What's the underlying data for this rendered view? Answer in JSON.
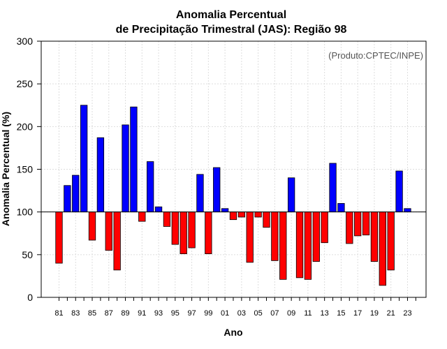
{
  "chart_data": {
    "type": "bar",
    "title": "Anomalia Percentual",
    "subtitle": "de Precipitação Trimestral (JAS): Região 98",
    "xlabel": "Ano",
    "ylabel": "Anomalia Percentual (%)",
    "credit": "(Produto:CPTEC/INPE)",
    "baseline": 100,
    "ylim": [
      0,
      300
    ],
    "yticks": [
      "0",
      "50",
      "100",
      "150",
      "200",
      "250",
      "300"
    ],
    "categories": [
      "81",
      "82",
      "83",
      "84",
      "85",
      "86",
      "87",
      "88",
      "89",
      "90",
      "91",
      "92",
      "93",
      "94",
      "95",
      "96",
      "97",
      "98",
      "99",
      "00",
      "01",
      "02",
      "03",
      "04",
      "05",
      "06",
      "07",
      "08",
      "09",
      "10",
      "11",
      "12",
      "13",
      "14",
      "15",
      "16",
      "17",
      "18",
      "19",
      "20",
      "21",
      "22",
      "23",
      "24"
    ],
    "tick_labels": [
      "81",
      "83",
      "85",
      "87",
      "89",
      "91",
      "93",
      "95",
      "97",
      "99",
      "01",
      "03",
      "05",
      "07",
      "09",
      "11",
      "13",
      "15",
      "17",
      "19",
      "21",
      "23"
    ],
    "values": [
      40,
      131,
      143,
      225,
      67,
      187,
      55,
      32,
      202,
      223,
      89,
      159,
      106,
      83,
      62,
      51,
      58,
      144,
      51,
      152,
      104,
      91,
      94,
      41,
      94,
      82,
      43,
      21,
      140,
      23,
      21,
      42,
      64,
      157,
      110,
      63,
      72,
      73,
      42,
      14,
      32,
      148,
      104,
      null
    ],
    "colors": {
      "above": "#0000ff",
      "below": "#ff0000",
      "grid": "#dddddd",
      "axis": "#000000"
    }
  }
}
